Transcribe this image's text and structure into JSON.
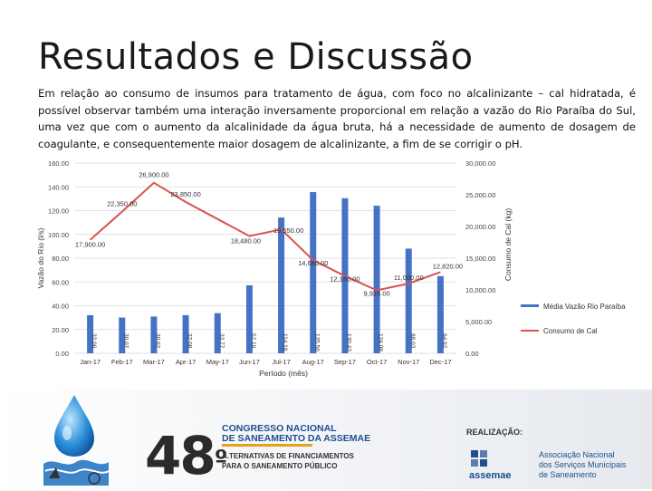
{
  "slide": {
    "title": "Resultados e Discussão",
    "intro": "Em relação ao consumo de insumos para tratamento de água, com foco no alcalinizante – cal hidratada, é possível observar também uma interação inversamente proporcional em relação a vazão do Rio Paraíba do Sul, uma vez que com o aumento da alcalinidade da água bruta, há a necessidade de aumento de dosagem de coagulante, e consequentemente maior dosagem de alcalinizante, a fim de se corrigir o pH."
  },
  "chart_data": {
    "type": "bar",
    "categories": [
      "Jan-17",
      "Feb-17",
      "Mar-17",
      "Apr-17",
      "May-17",
      "Jun-17",
      "Jul-17",
      "Aug-17",
      "Sep-17",
      "Oct-17",
      "Nov-17",
      "Dec-17"
    ],
    "series": [
      {
        "name": "Média Vazão Rio Paraíba",
        "type": "bar",
        "axis": "left",
        "color": "#4472c4",
        "values": [
          32.06,
          30.07,
          30.92,
          32.08,
          33.77,
          57.19,
          114.19,
          135.56,
          130.43,
          124.08,
          88.03,
          64.92
        ],
        "labels": [
          "32.06",
          "30.07",
          "30.92",
          "32.08",
          "33.77",
          "57.19",
          "114.19",
          "135.56",
          "130.43",
          "124.08",
          "88.03",
          "64.92"
        ]
      },
      {
        "name": "Consumo de Cal",
        "type": "line",
        "axis": "right",
        "color": "#d9534f",
        "values": [
          17900,
          22350,
          26900,
          23850,
          null,
          18480,
          19550,
          14680,
          12180,
          9925,
          11000,
          12820
        ],
        "labels": [
          "17,900.00",
          "22,350.00",
          "26,900.00",
          "23,850.00",
          "",
          "18,480.00",
          "19,550.00",
          "14,680.00",
          "12,180.00",
          "9,925.00",
          "11,000.00",
          "12,820.00"
        ]
      }
    ],
    "xlabel": "Período (mês)",
    "ylabel": "Vazão do Rio (l/s)",
    "y2label": "Consumo de Cal (kg)",
    "ylim": [
      0,
      160
    ],
    "y2lim": [
      0,
      30000
    ],
    "yticks": [
      "0.00",
      "20.00",
      "40.00",
      "60.00",
      "80.00",
      "100.00",
      "120.00",
      "140.00",
      "160.00"
    ],
    "y2ticks": [
      "0.00",
      "5,000.00",
      "10,000.00",
      "15,000.00",
      "20,000.00",
      "25,000.00",
      "30,000.00"
    ],
    "grid": true,
    "legend_position": "right"
  },
  "footer": {
    "edition": "48",
    "edition_suffix": "º",
    "congress_line1": "CONGRESSO NACIONAL",
    "congress_line2": "DE SANEAMENTO DA ASSEMAE",
    "theme_line1": "A.TERNATIVAS DE FINANCIAMENTOS",
    "theme_line2": "PARA O SANEAMENTO PÚBLICO",
    "realizacao": "REALIZAÇÃO:",
    "assoc_line1": "Associação Nacional",
    "assoc_line2": "dos Serviços Municipais",
    "assoc_line3": "de Saneamento",
    "assemae": "assemae",
    "colors": {
      "blue": "#1e4f8f",
      "orange": "#e8a21a"
    }
  }
}
